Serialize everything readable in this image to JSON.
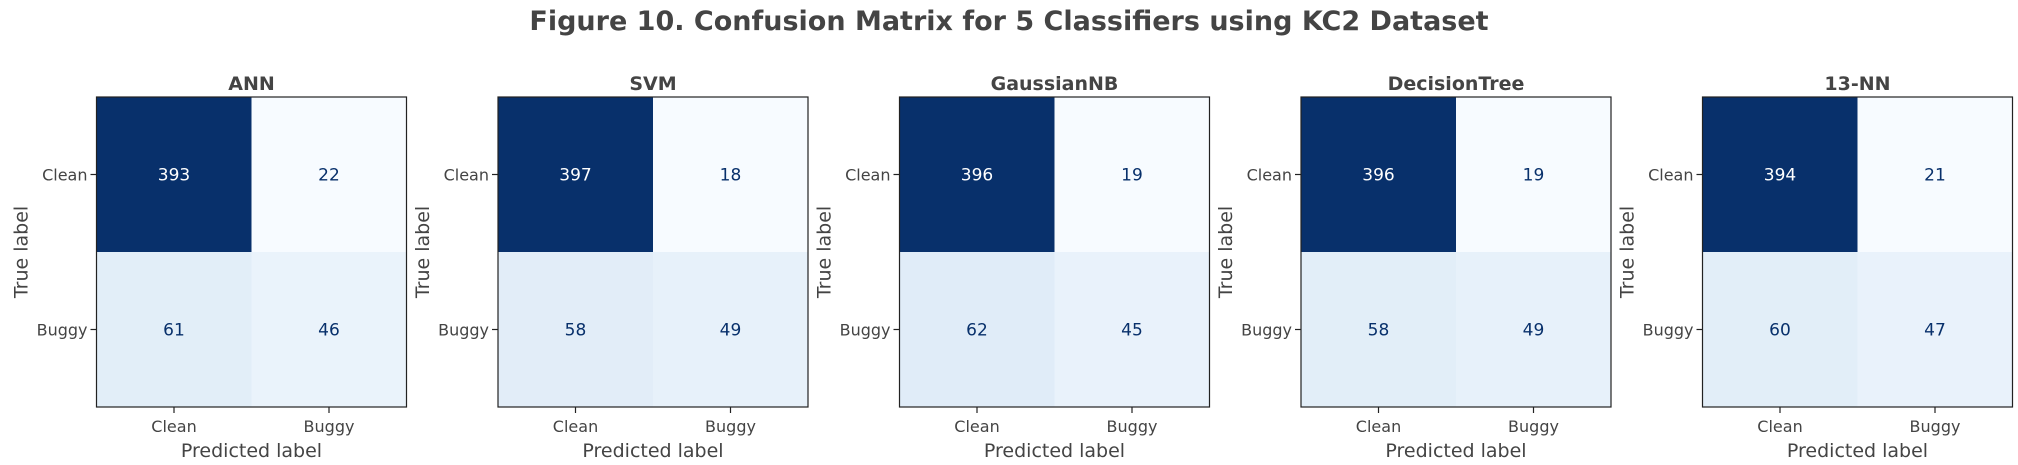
{
  "figure": {
    "title": "Figure 10. Confusion Matrix for 5 Classifiers using KC2 Dataset"
  },
  "colors": {
    "text": "#444444",
    "axis": "#222222",
    "light_cell_text": "#08306b",
    "dark_cell_text": "#ffffff",
    "cmap": "Blues"
  },
  "chart_data": [
    {
      "type": "heatmap",
      "title": "ANN",
      "xlabel": "Predicted label",
      "ylabel": "True label",
      "x_categories": [
        "Clean",
        "Buggy"
      ],
      "y_categories": [
        "Clean",
        "Buggy"
      ],
      "matrix": [
        [
          393,
          22
        ],
        [
          61,
          46
        ]
      ]
    },
    {
      "type": "heatmap",
      "title": "SVM",
      "xlabel": "Predicted label",
      "ylabel": "True label",
      "x_categories": [
        "Clean",
        "Buggy"
      ],
      "y_categories": [
        "Clean",
        "Buggy"
      ],
      "matrix": [
        [
          397,
          18
        ],
        [
          58,
          49
        ]
      ]
    },
    {
      "type": "heatmap",
      "title": "GaussianNB",
      "xlabel": "Predicted label",
      "ylabel": "True label",
      "x_categories": [
        "Clean",
        "Buggy"
      ],
      "y_categories": [
        "Clean",
        "Buggy"
      ],
      "matrix": [
        [
          396,
          19
        ],
        [
          62,
          45
        ]
      ]
    },
    {
      "type": "heatmap",
      "title": "DecisionTree",
      "xlabel": "Predicted label",
      "ylabel": "True label",
      "x_categories": [
        "Clean",
        "Buggy"
      ],
      "y_categories": [
        "Clean",
        "Buggy"
      ],
      "matrix": [
        [
          396,
          19
        ],
        [
          58,
          49
        ]
      ]
    },
    {
      "type": "heatmap",
      "title": "13-NN",
      "xlabel": "Predicted label",
      "ylabel": "True label",
      "x_categories": [
        "Clean",
        "Buggy"
      ],
      "y_categories": [
        "Clean",
        "Buggy"
      ],
      "matrix": [
        [
          394,
          21
        ],
        [
          60,
          47
        ]
      ]
    }
  ]
}
